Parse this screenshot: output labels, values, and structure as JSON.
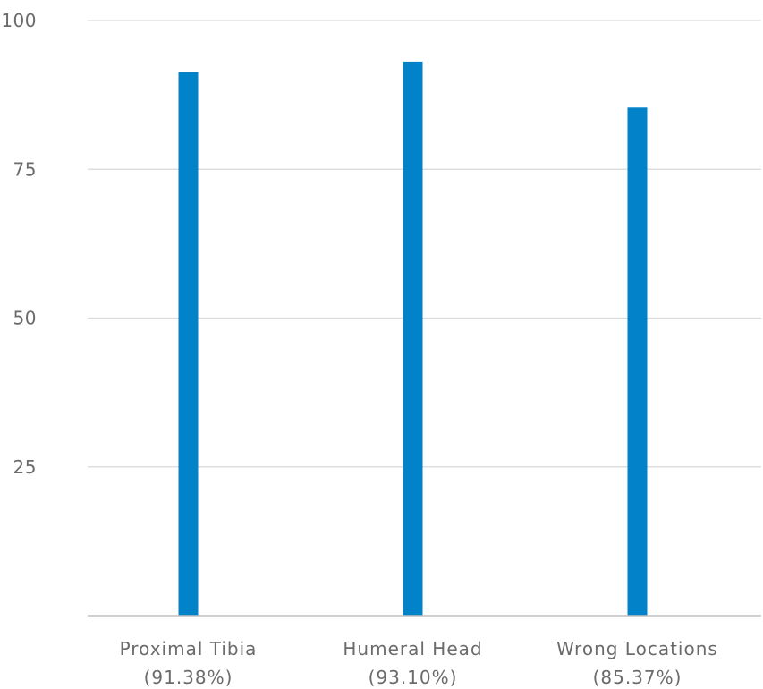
{
  "chart_data": {
    "type": "bar",
    "categories": [
      {
        "name": "Proximal Tibia",
        "value_label": "(91.38%)"
      },
      {
        "name": "Humeral Head",
        "value_label": "(93.10%)"
      },
      {
        "name": "Wrong Locations",
        "value_label": "(85.37%)"
      }
    ],
    "values": [
      91.38,
      93.1,
      85.37
    ],
    "ylim": [
      0,
      100
    ],
    "yticks": [
      25,
      50,
      75,
      100
    ],
    "ytick_labels": [
      "25",
      "50",
      "75",
      "100"
    ],
    "grid": true,
    "legend": "none",
    "title": "",
    "xlabel": "",
    "ylabel": "",
    "colors": {
      "bar": "#0282c9",
      "grid": "#d9d9d9",
      "text": "#6b6b6b"
    }
  }
}
